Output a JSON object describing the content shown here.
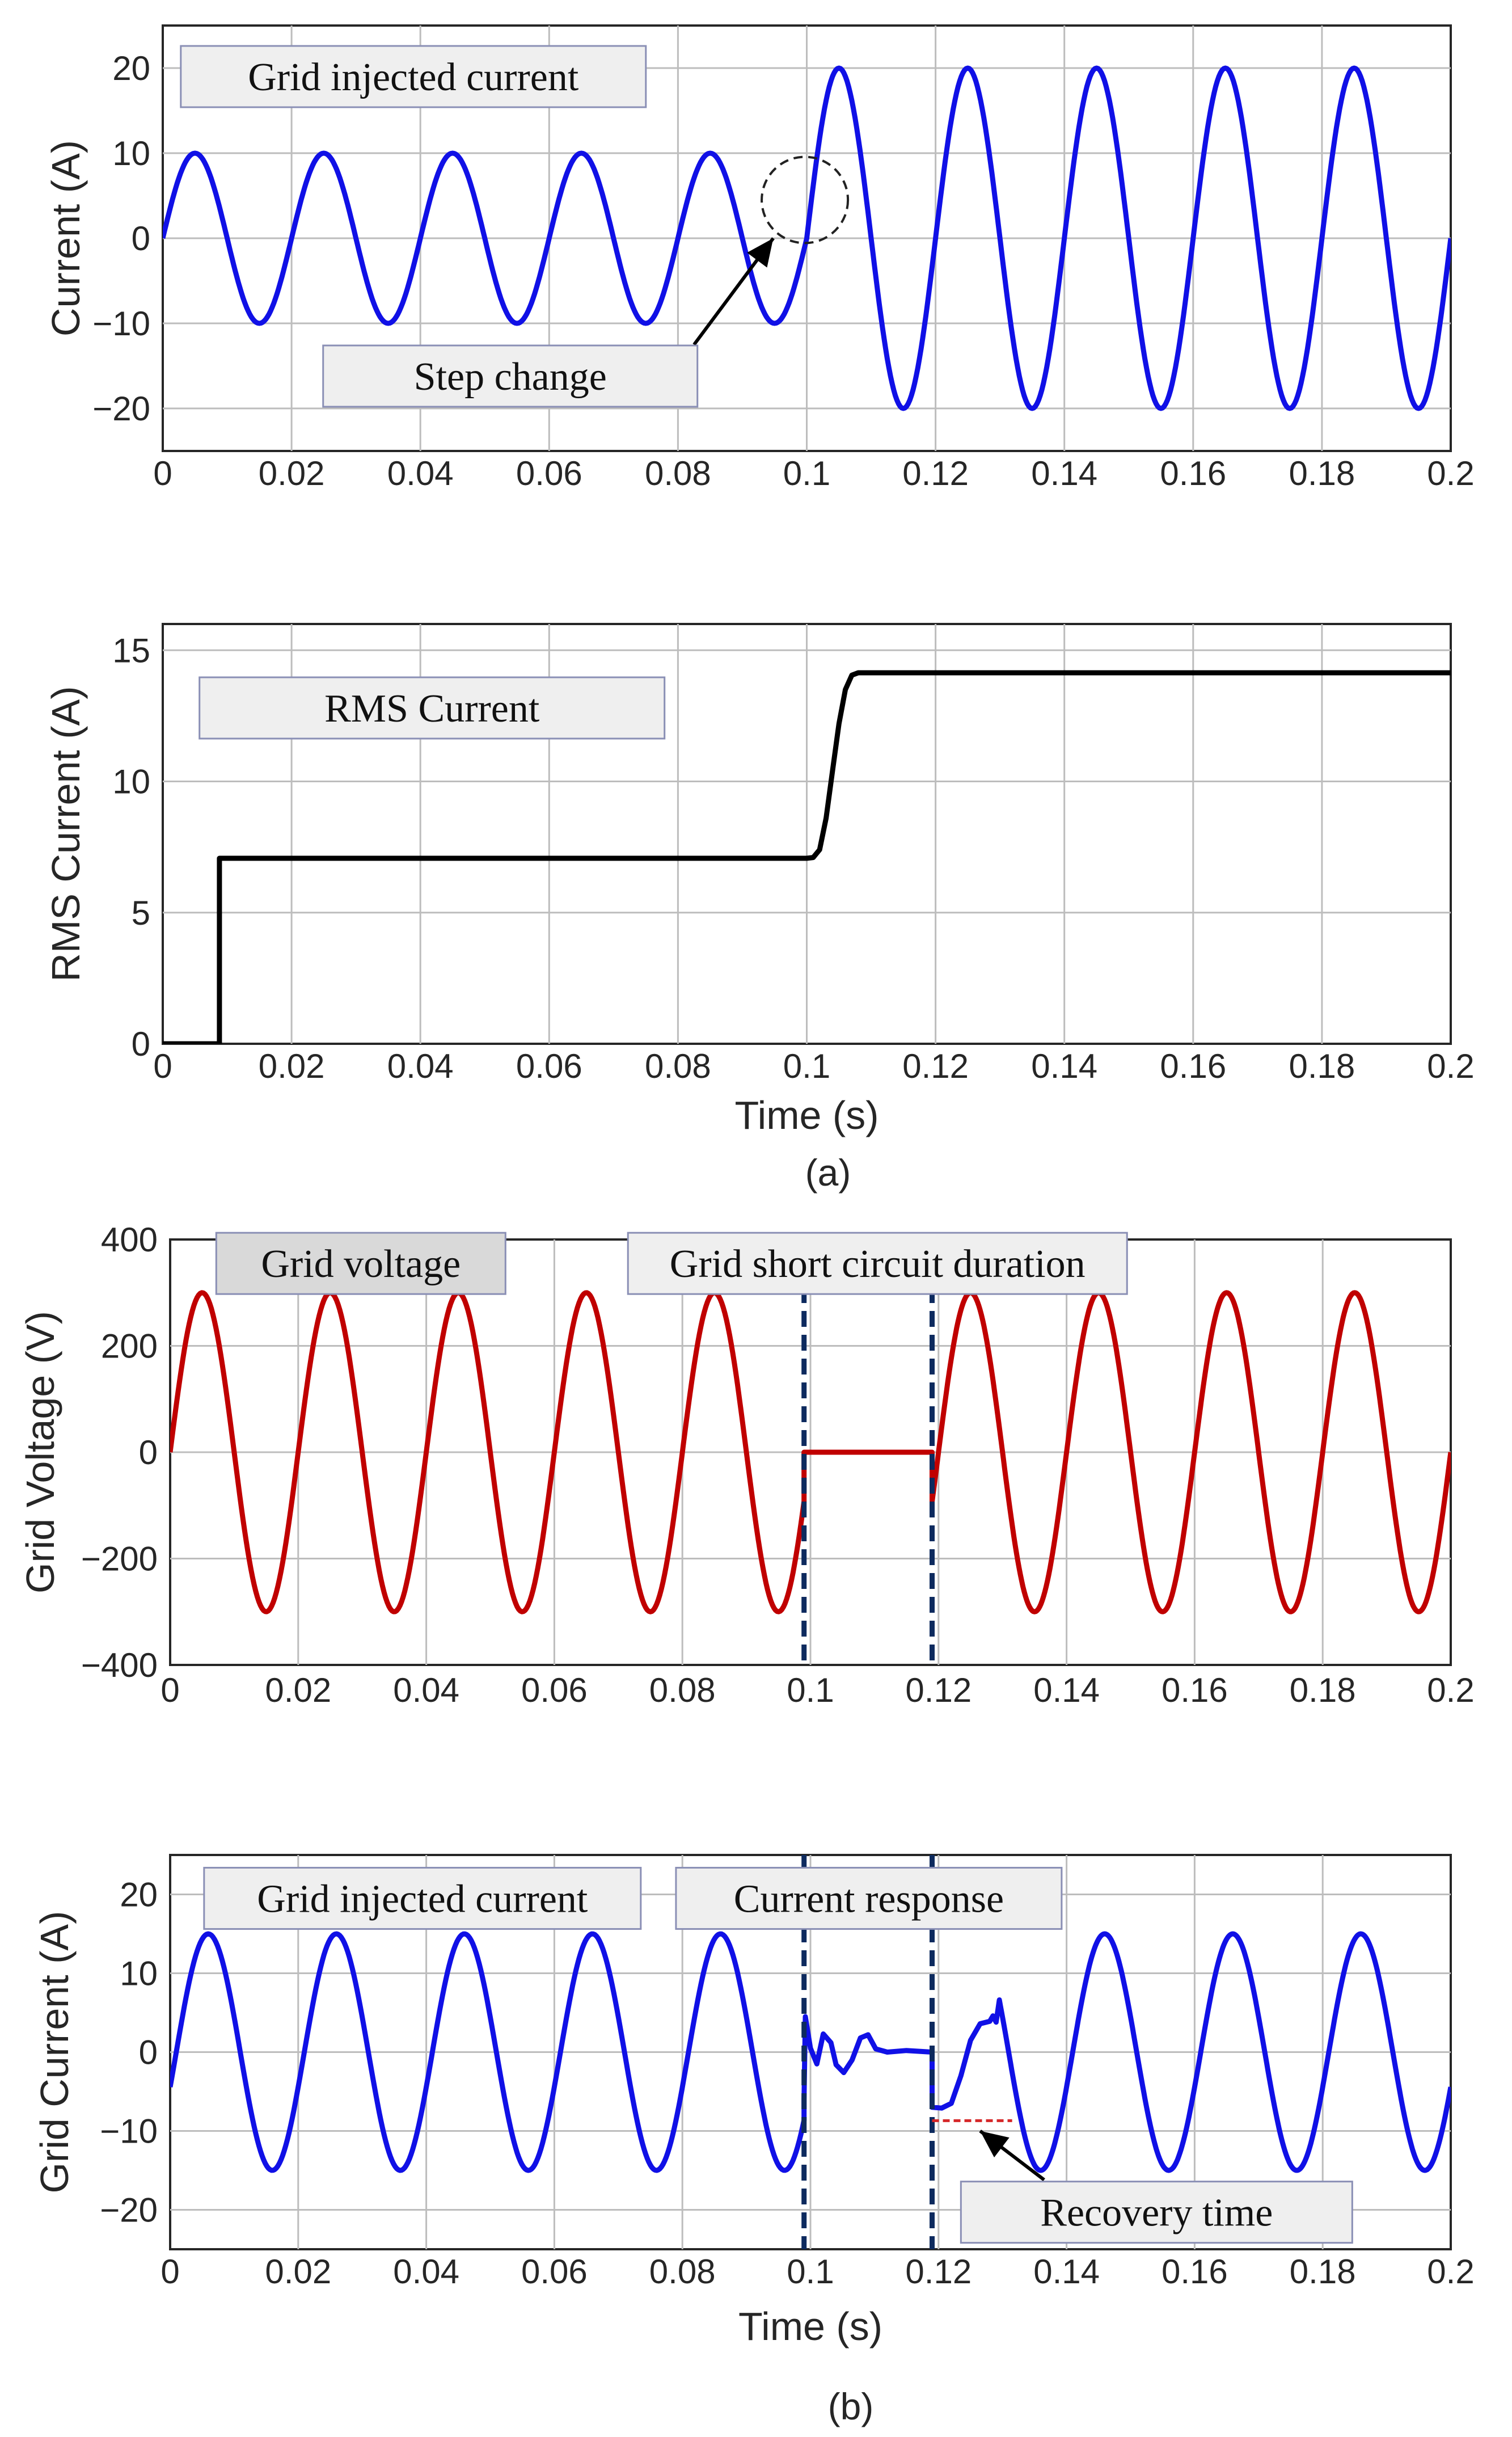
{
  "captions": [
    "(a)",
    "(b)"
  ],
  "chart_data": [
    {
      "type": "line",
      "ylabel": "Current (A)",
      "xlabel": "",
      "xlim": [
        0,
        0.2
      ],
      "ylim": [
        -25,
        25
      ],
      "xticks": [
        "0",
        "0.02",
        "0.04",
        "0.06",
        "0.08",
        "0.1",
        "0.12",
        "0.14",
        "0.16",
        "0.18",
        "0.2"
      ],
      "yticks": [
        "20",
        "10",
        "0",
        "−10",
        "−20"
      ],
      "grid": true,
      "series": [
        {
          "color": "#1010e6",
          "model": "sine",
          "frequency_hz": 50,
          "segments": [
            {
              "t": [
                0,
                0.1
              ],
              "amplitude": 10,
              "phase_shift": 0
            },
            {
              "t": [
                0.1,
                0.2
              ],
              "amplitude": 20,
              "phase_shift": 0
            }
          ]
        }
      ],
      "annotations": [
        {
          "text": "Grid injected current",
          "anchor": [
            0.0028,
            19
          ]
        },
        {
          "text": "Step change",
          "anchor": [
            0.0249,
            -16.2
          ]
        }
      ],
      "marker_circle": {
        "center": [
          0.0997,
          4.5
        ]
      },
      "arrow": {
        "from": [
          0.0825,
          -12.5
        ],
        "to": [
          0.0948,
          0
        ]
      }
    },
    {
      "type": "line",
      "ylabel": "RMS Current (A)",
      "xlabel": "Time (s)",
      "xlim": [
        0,
        0.2
      ],
      "ylim": [
        0,
        16
      ],
      "xticks": [
        "0",
        "0.02",
        "0.04",
        "0.06",
        "0.08",
        "0.1",
        "0.12",
        "0.14",
        "0.16",
        "0.18",
        "0.2"
      ],
      "yticks": [
        "15",
        "10",
        "5",
        "0"
      ],
      "grid": true,
      "series": [
        {
          "color": "#000000",
          "points": [
            [
              0,
              0
            ],
            [
              0.0088,
              0
            ],
            [
              0.0088,
              7.07
            ],
            [
              0.1,
              7.07
            ],
            [
              0.101,
              7.1
            ],
            [
              0.102,
              7.4
            ],
            [
              0.103,
              8.6
            ],
            [
              0.104,
              10.4
            ],
            [
              0.105,
              12.2
            ],
            [
              0.106,
              13.5
            ],
            [
              0.107,
              14.05
            ],
            [
              0.108,
              14.14
            ],
            [
              0.2,
              14.14
            ]
          ]
        }
      ],
      "annotations": [
        {
          "text": "RMS Current",
          "anchor": [
            0.0057,
            12.8
          ]
        }
      ]
    },
    {
      "type": "line",
      "ylabel": "Grid Voltage (V)",
      "xlabel": "",
      "xlim": [
        0,
        0.2
      ],
      "ylim": [
        -400,
        400
      ],
      "xticks": [
        "0",
        "0.02",
        "0.04",
        "0.06",
        "0.08",
        "0.1",
        "0.12",
        "0.14",
        "0.16",
        "0.18",
        "0.2"
      ],
      "yticks": [
        "400",
        "200",
        "0",
        "−200",
        "−400"
      ],
      "grid": true,
      "series": [
        {
          "color": "#c00000",
          "model": "sine",
          "frequency_hz": 50,
          "segments": [
            {
              "t": [
                0,
                0.099
              ],
              "amplitude": 300,
              "phase_shift": 0
            },
            {
              "t": [
                0.099,
                0.119
              ],
              "amplitude": 0,
              "phase_shift": 0
            },
            {
              "t": [
                0.119,
                0.2
              ],
              "amplitude": 300,
              "phase_shift": 0
            }
          ]
        }
      ],
      "vlines": [
        0.099,
        0.119
      ],
      "vline_color": "#0d2a5e",
      "annotations": [
        {
          "text": "Grid voltage",
          "anchor": [
            0.0072,
            355
          ]
        },
        {
          "text": "Grid short circuit duration",
          "anchor": [
            0.0715,
            355
          ]
        }
      ]
    },
    {
      "type": "line",
      "ylabel": "Grid Current (A)",
      "xlabel": "Time (s)",
      "xlim": [
        0,
        0.2
      ],
      "ylim": [
        -25,
        25
      ],
      "xticks": [
        "0",
        "0.02",
        "0.04",
        "0.06",
        "0.08",
        "0.1",
        "0.12",
        "0.14",
        "0.16",
        "0.18",
        "0.2"
      ],
      "yticks": [
        "20",
        "10",
        "0",
        "−10",
        "−20"
      ],
      "grid": true,
      "series": [
        {
          "color": "#1010e6",
          "points_desc": "15 A, 50 Hz sine before fault (phase -0.3 rad); transient during fault; recovery after 0.119 s",
          "amplitude": 15,
          "frequency_hz": 50,
          "phase_rad": -0.3,
          "fault_points": [
            [
              0.099,
              -6
            ],
            [
              0.0992,
              4.5
            ],
            [
              0.1,
              0.5
            ],
            [
              0.101,
              -1.5
            ],
            [
              0.102,
              2.3
            ],
            [
              0.1032,
              1.2
            ],
            [
              0.104,
              -1.6
            ],
            [
              0.1052,
              -2.6
            ],
            [
              0.1065,
              -1.0
            ],
            [
              0.1078,
              1.8
            ],
            [
              0.109,
              2.2
            ],
            [
              0.1102,
              0.4
            ],
            [
              0.112,
              0.0
            ],
            [
              0.115,
              0.2
            ],
            [
              0.119,
              0.0
            ]
          ],
          "recovery_points": [
            [
              0.119,
              -7.0
            ],
            [
              0.1205,
              -7.1
            ],
            [
              0.122,
              -6.5
            ],
            [
              0.1235,
              -3.0
            ],
            [
              0.125,
              1.5
            ],
            [
              0.1265,
              3.6
            ],
            [
              0.128,
              3.9
            ],
            [
              0.1285,
              4.6
            ],
            [
              0.129,
              3.8
            ]
          ]
        }
      ],
      "vlines": [
        0.099,
        0.119
      ],
      "vline_color": "#0d2a5e",
      "recovery_marker": {
        "x": [
          0.119,
          0.1315
        ],
        "y": -8.7,
        "color": "#d62728"
      },
      "annotations": [
        {
          "text": "Grid injected current",
          "anchor": [
            0.0053,
            19.5
          ]
        },
        {
          "text": "Current response",
          "anchor": [
            0.079,
            19.5
          ]
        },
        {
          "text": "Recovery time",
          "anchor": [
            0.1235,
            -20.3
          ]
        }
      ],
      "arrow": {
        "from": [
          0.1365,
          -16.2
        ],
        "to": [
          0.1265,
          -10
        ]
      }
    }
  ]
}
